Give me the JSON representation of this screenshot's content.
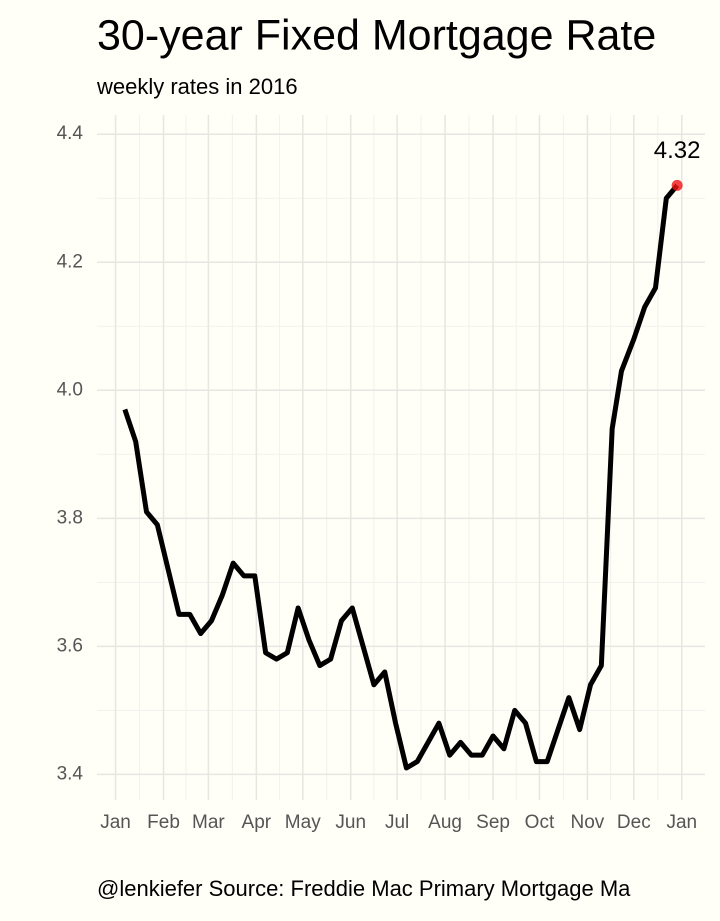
{
  "chart_data": {
    "type": "line",
    "title": "30-year Fixed Mortgage Rate",
    "subtitle": "weekly rates in 2016",
    "caption": "@lenkiefer Source: Freddie Mac Primary Mortgage Ma",
    "x": [
      7,
      14,
      21,
      28,
      35,
      42,
      49,
      56,
      63,
      70,
      77,
      84,
      91,
      98,
      105,
      112,
      119,
      126,
      133,
      140,
      147,
      154,
      161,
      168,
      175,
      182,
      189,
      196,
      203,
      210,
      217,
      224,
      231,
      238,
      245,
      252,
      259,
      266,
      273,
      280,
      287,
      294,
      301,
      308,
      315,
      322,
      328,
      336,
      343,
      350,
      357,
      364
    ],
    "series": [
      {
        "color": "#000000",
        "values": [
          3.97,
          3.92,
          3.81,
          3.79,
          3.72,
          3.65,
          3.65,
          3.62,
          3.64,
          3.68,
          3.73,
          3.71,
          3.71,
          3.59,
          3.58,
          3.59,
          3.66,
          3.61,
          3.57,
          3.58,
          3.64,
          3.66,
          3.6,
          3.54,
          3.56,
          3.48,
          3.41,
          3.42,
          3.45,
          3.48,
          3.43,
          3.45,
          3.43,
          3.43,
          3.46,
          3.44,
          3.5,
          3.48,
          3.42,
          3.42,
          3.47,
          3.52,
          3.47,
          3.54,
          3.57,
          3.94,
          4.03,
          4.08,
          4.13,
          4.16,
          4.3,
          4.32
        ]
      }
    ],
    "highlight_color": "#ee1111",
    "xlim": [
      -11,
      382
    ],
    "xticks": [
      {
        "value": 1,
        "label": "Jan"
      },
      {
        "value": 32,
        "label": "Feb"
      },
      {
        "value": 61,
        "label": "Mar"
      },
      {
        "value": 92,
        "label": "Apr"
      },
      {
        "value": 122,
        "label": "May"
      },
      {
        "value": 153,
        "label": "Jun"
      },
      {
        "value": 183,
        "label": "Jul"
      },
      {
        "value": 214,
        "label": "Aug"
      },
      {
        "value": 245,
        "label": "Sep"
      },
      {
        "value": 275,
        "label": "Oct"
      },
      {
        "value": 306,
        "label": "Nov"
      },
      {
        "value": 336,
        "label": "Dec"
      },
      {
        "value": 367,
        "label": "Jan"
      }
    ],
    "ylim": [
      3.36,
      4.43
    ],
    "yticks": [
      3.4,
      3.6,
      3.8,
      {
        "value": 4,
        "label": "4.0"
      },
      4.2,
      4.4
    ],
    "grid": true
  }
}
